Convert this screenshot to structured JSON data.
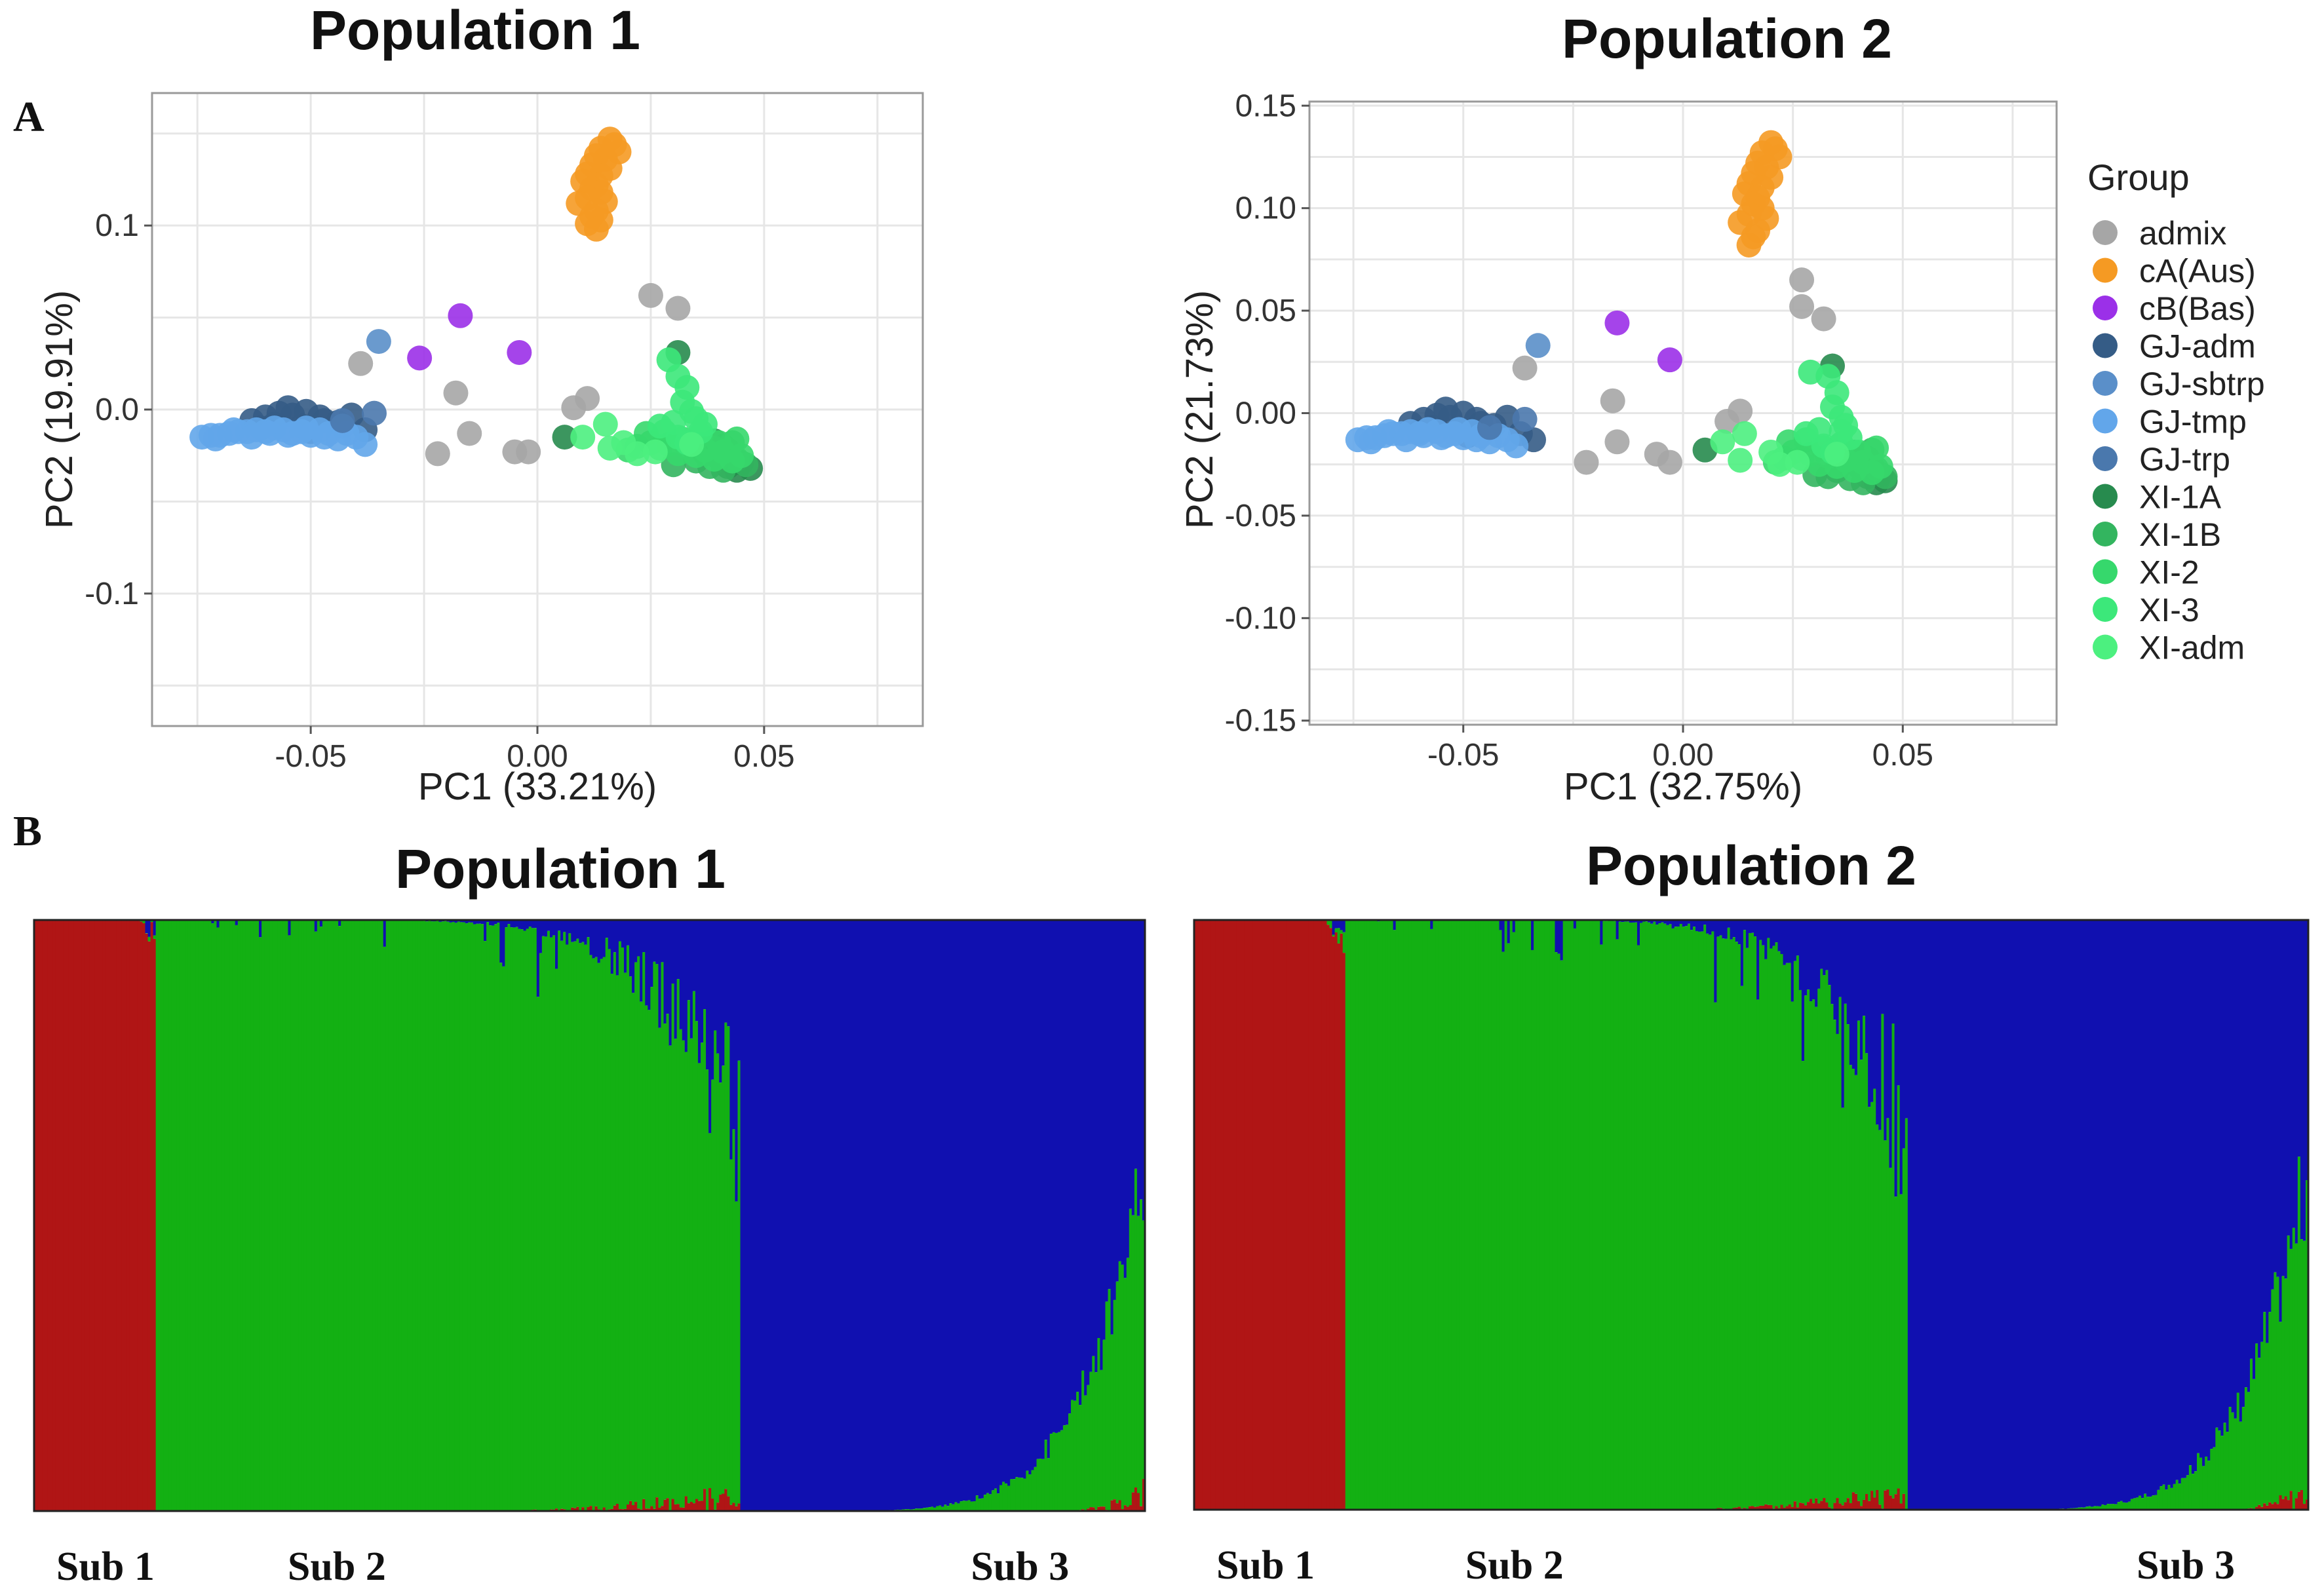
{
  "panel_a_label": "A",
  "panel_b_label": "B",
  "chart_data": [
    {
      "type": "scatter",
      "title": "Population 1",
      "xlabel": "PC1 (33.21%)",
      "ylabel": "PC2 (19.91%)",
      "xlim": [
        -0.085,
        0.085
      ],
      "ylim": [
        -0.172,
        0.172
      ],
      "xticks": [
        -0.05,
        0.0,
        0.05
      ],
      "xtick_labels": [
        "-0.05",
        "0.00",
        "0.05"
      ],
      "yticks": [
        -0.1,
        0.0,
        0.1
      ],
      "ytick_labels": [
        "-0.1",
        "0.0",
        "0.1"
      ],
      "series": [
        {
          "name": "admix",
          "x": [
            0.025,
            0.031,
            -0.039,
            -0.018,
            -0.015,
            -0.022,
            -0.005,
            -0.002,
            0.008,
            0.011
          ],
          "y": [
            0.062,
            0.055,
            0.025,
            0.009,
            -0.013,
            -0.024,
            -0.023,
            -0.023,
            0.001,
            0.006
          ]
        },
        {
          "name": "cA(Aus)",
          "x": [
            0.016,
            0.017,
            0.014,
            0.018,
            0.013,
            0.015,
            0.012,
            0.016,
            0.011,
            0.014,
            0.01,
            0.013,
            0.012,
            0.014,
            0.011,
            0.015,
            0.009,
            0.013,
            0.012,
            0.011,
            0.014,
            0.013
          ],
          "y": [
            0.147,
            0.144,
            0.142,
            0.14,
            0.138,
            0.136,
            0.133,
            0.131,
            0.128,
            0.127,
            0.124,
            0.122,
            0.12,
            0.118,
            0.115,
            0.113,
            0.112,
            0.108,
            0.105,
            0.101,
            0.103,
            0.098
          ]
        },
        {
          "name": "cB(Bas)",
          "x": [
            -0.017,
            -0.026,
            -0.004
          ],
          "y": [
            0.051,
            0.028,
            0.031
          ]
        },
        {
          "name": "GJ-adm",
          "x": [
            -0.063,
            -0.06,
            -0.057,
            -0.054,
            -0.051,
            -0.048,
            -0.058,
            -0.052,
            -0.047,
            -0.055,
            -0.061,
            -0.05,
            -0.044,
            -0.041,
            -0.038
          ],
          "y": [
            -0.006,
            -0.004,
            -0.002,
            -0.003,
            -0.001,
            -0.004,
            -0.008,
            -0.009,
            -0.006,
            0.001,
            -0.01,
            -0.012,
            -0.007,
            -0.003,
            -0.011
          ]
        },
        {
          "name": "GJ-sbtrp",
          "x": [
            -0.035
          ],
          "y": [
            0.037
          ]
        },
        {
          "name": "GJ-tmp",
          "x": [
            -0.074,
            -0.072,
            -0.07,
            -0.068,
            -0.066,
            -0.064,
            -0.062,
            -0.06,
            -0.058,
            -0.056,
            -0.054,
            -0.052,
            -0.05,
            -0.048,
            -0.046,
            -0.044,
            -0.042,
            -0.04,
            -0.038,
            -0.071,
            -0.067,
            -0.063,
            -0.059,
            -0.055,
            -0.051,
            -0.047,
            -0.043
          ],
          "y": [
            -0.015,
            -0.014,
            -0.014,
            -0.013,
            -0.012,
            -0.012,
            -0.011,
            -0.012,
            -0.01,
            -0.011,
            -0.013,
            -0.012,
            -0.014,
            -0.011,
            -0.013,
            -0.016,
            -0.013,
            -0.015,
            -0.019,
            -0.016,
            -0.011,
            -0.015,
            -0.013,
            -0.014,
            -0.01,
            -0.015,
            -0.009
          ]
        },
        {
          "name": "GJ-trp",
          "x": [
            -0.036,
            -0.043
          ],
          "y": [
            -0.002,
            -0.006
          ]
        },
        {
          "name": "XI-1A",
          "x": [
            0.031,
            0.006,
            0.039,
            0.041,
            0.043,
            0.045,
            0.047,
            0.044,
            0.042
          ],
          "y": [
            0.031,
            -0.015,
            -0.017,
            -0.02,
            -0.025,
            -0.029,
            -0.032,
            -0.033,
            -0.031
          ]
        },
        {
          "name": "XI-1B",
          "x": [
            0.03,
            0.035,
            0.037,
            0.04,
            0.042,
            0.044,
            0.046,
            0.038,
            0.036,
            0.041,
            0.043,
            0.039
          ],
          "y": [
            -0.03,
            -0.028,
            -0.024,
            -0.026,
            -0.022,
            -0.027,
            -0.03,
            -0.031,
            -0.019,
            -0.033,
            -0.018,
            -0.021
          ]
        },
        {
          "name": "XI-2",
          "x": [
            0.02,
            0.022,
            0.025,
            0.027,
            0.029,
            0.031,
            0.033,
            0.035,
            0.037,
            0.039,
            0.041,
            0.043,
            0.045,
            0.024,
            0.028,
            0.032,
            0.036,
            0.04,
            0.044
          ],
          "y": [
            -0.022,
            -0.02,
            -0.018,
            -0.021,
            -0.019,
            -0.024,
            -0.02,
            -0.025,
            -0.022,
            -0.027,
            -0.023,
            -0.028,
            -0.025,
            -0.013,
            -0.012,
            -0.016,
            -0.014,
            -0.018,
            -0.016
          ]
        },
        {
          "name": "XI-3",
          "x": [
            0.029,
            0.031,
            0.033,
            0.032,
            0.034,
            0.035,
            0.03,
            0.036,
            0.027,
            0.031,
            0.033,
            0.037
          ],
          "y": [
            0.027,
            0.018,
            0.012,
            0.004,
            -0.001,
            -0.005,
            -0.007,
            -0.012,
            -0.009,
            -0.015,
            -0.018,
            -0.008
          ]
        },
        {
          "name": "XI-adm",
          "x": [
            0.015,
            0.016,
            0.01,
            0.022,
            0.019,
            0.026,
            0.034
          ],
          "y": [
            -0.008,
            -0.021,
            -0.015,
            -0.024,
            -0.018,
            -0.023,
            -0.019
          ]
        }
      ]
    },
    {
      "type": "scatter",
      "title": "Population 2",
      "xlabel": "PC1 (32.75%)",
      "ylabel": "PC2 (21.73%)",
      "xlim": [
        -0.085,
        0.085
      ],
      "ylim": [
        -0.152,
        0.152
      ],
      "xticks": [
        -0.05,
        0.0,
        0.05
      ],
      "xtick_labels": [
        "-0.05",
        "0.00",
        "0.05"
      ],
      "yticks": [
        -0.15,
        -0.1,
        -0.05,
        0.0,
        0.05,
        0.1,
        0.15
      ],
      "ytick_labels": [
        "-0.15",
        "-0.10",
        "-0.05",
        "0.00",
        "0.05",
        "0.10",
        "0.15"
      ],
      "series": [
        {
          "name": "admix",
          "x": [
            0.027,
            0.027,
            0.032,
            -0.036,
            -0.016,
            -0.015,
            -0.022,
            -0.006,
            -0.003,
            0.01,
            0.013
          ],
          "y": [
            0.065,
            0.052,
            0.046,
            0.022,
            0.006,
            -0.014,
            -0.024,
            -0.02,
            -0.024,
            -0.004,
            0.001
          ]
        },
        {
          "name": "cA(Aus)",
          "x": [
            0.02,
            0.021,
            0.018,
            0.022,
            0.017,
            0.019,
            0.016,
            0.02,
            0.015,
            0.018,
            0.014,
            0.017,
            0.016,
            0.018,
            0.015,
            0.019,
            0.013,
            0.017,
            0.016,
            0.015
          ],
          "y": [
            0.132,
            0.129,
            0.127,
            0.125,
            0.122,
            0.12,
            0.117,
            0.115,
            0.112,
            0.11,
            0.107,
            0.105,
            0.102,
            0.1,
            0.097,
            0.095,
            0.093,
            0.089,
            0.086,
            0.082
          ]
        },
        {
          "name": "cB(Bas)",
          "x": [
            -0.015,
            -0.003
          ],
          "y": [
            0.044,
            0.026
          ]
        },
        {
          "name": "GJ-adm",
          "x": [
            -0.062,
            -0.059,
            -0.056,
            -0.053,
            -0.05,
            -0.047,
            -0.057,
            -0.051,
            -0.046,
            -0.054,
            -0.06,
            -0.049,
            -0.043,
            -0.04,
            -0.037,
            -0.034
          ],
          "y": [
            -0.005,
            -0.003,
            -0.001,
            -0.002,
            0.0,
            -0.003,
            -0.007,
            -0.008,
            -0.005,
            0.002,
            -0.009,
            -0.011,
            -0.006,
            -0.002,
            -0.01,
            -0.013
          ]
        },
        {
          "name": "GJ-sbtrp",
          "x": [
            -0.033
          ],
          "y": [
            0.033
          ]
        },
        {
          "name": "GJ-tmp",
          "x": [
            -0.074,
            -0.072,
            -0.07,
            -0.068,
            -0.066,
            -0.064,
            -0.062,
            -0.06,
            -0.058,
            -0.056,
            -0.054,
            -0.052,
            -0.05,
            -0.048,
            -0.046,
            -0.044,
            -0.042,
            -0.04,
            -0.038,
            -0.071,
            -0.067,
            -0.063,
            -0.059,
            -0.055,
            -0.051,
            -0.047
          ],
          "y": [
            -0.013,
            -0.012,
            -0.012,
            -0.011,
            -0.01,
            -0.01,
            -0.009,
            -0.01,
            -0.008,
            -0.009,
            -0.011,
            -0.01,
            -0.012,
            -0.009,
            -0.011,
            -0.014,
            -0.011,
            -0.013,
            -0.016,
            -0.014,
            -0.009,
            -0.013,
            -0.011,
            -0.012,
            -0.008,
            -0.013
          ]
        },
        {
          "name": "GJ-trp",
          "x": [
            -0.036,
            -0.044
          ],
          "y": [
            -0.003,
            -0.007
          ]
        },
        {
          "name": "XI-1A",
          "x": [
            0.034,
            0.005,
            0.039,
            0.041,
            0.043,
            0.045,
            0.046,
            0.044,
            0.042
          ],
          "y": [
            0.023,
            -0.018,
            -0.019,
            -0.022,
            -0.026,
            -0.03,
            -0.033,
            -0.034,
            -0.031
          ]
        },
        {
          "name": "XI-1B",
          "x": [
            0.03,
            0.035,
            0.037,
            0.04,
            0.042,
            0.044,
            0.046,
            0.038,
            0.036,
            0.041,
            0.043,
            0.039,
            0.033
          ],
          "y": [
            -0.03,
            -0.028,
            -0.024,
            -0.026,
            -0.022,
            -0.027,
            -0.031,
            -0.032,
            -0.019,
            -0.034,
            -0.018,
            -0.021,
            -0.031
          ]
        },
        {
          "name": "XI-2",
          "x": [
            0.021,
            0.023,
            0.025,
            0.027,
            0.029,
            0.031,
            0.033,
            0.035,
            0.037,
            0.039,
            0.041,
            0.043,
            0.045,
            0.024,
            0.028,
            0.032,
            0.036,
            0.04,
            0.044
          ],
          "y": [
            -0.024,
            -0.022,
            -0.019,
            -0.022,
            -0.02,
            -0.025,
            -0.021,
            -0.026,
            -0.023,
            -0.028,
            -0.024,
            -0.029,
            -0.026,
            -0.014,
            -0.013,
            -0.017,
            -0.015,
            -0.019,
            -0.017
          ]
        },
        {
          "name": "XI-3",
          "x": [
            0.029,
            0.033,
            0.035,
            0.034,
            0.036,
            0.037,
            0.031,
            0.038,
            0.028,
            0.032,
            0.034,
            0.036
          ],
          "y": [
            0.02,
            0.018,
            0.01,
            0.003,
            -0.002,
            -0.006,
            -0.008,
            -0.012,
            -0.01,
            -0.016,
            -0.019,
            -0.009
          ]
        },
        {
          "name": "XI-adm",
          "x": [
            0.014,
            0.013,
            0.009,
            0.022,
            0.02,
            0.026,
            0.035
          ],
          "y": [
            -0.01,
            -0.023,
            -0.014,
            -0.025,
            -0.019,
            -0.024,
            -0.02
          ]
        }
      ]
    },
    {
      "type": "bar",
      "stacked": true,
      "title": "Population 1",
      "series": [
        {
          "name": "Sub 1",
          "color": "#b01515"
        },
        {
          "name": "Sub 2",
          "color": "#13b013"
        },
        {
          "name": "Sub 3",
          "color": "#1010b0"
        }
      ],
      "segments": [
        {
          "start": 0.0,
          "end": 0.11,
          "dominant": "Sub 1",
          "label": "Sub 1"
        },
        {
          "start": 0.11,
          "end": 0.635,
          "dominant": "Sub 2",
          "label": "Sub 2"
        },
        {
          "start": 0.635,
          "end": 1.0,
          "dominant": "Sub 3",
          "label": "Sub 3"
        }
      ]
    },
    {
      "type": "bar",
      "stacked": true,
      "title": "Population 2",
      "series": [
        {
          "name": "Sub 1",
          "color": "#b01515"
        },
        {
          "name": "Sub 2",
          "color": "#13b013"
        },
        {
          "name": "Sub 3",
          "color": "#1010b0"
        }
      ],
      "segments": [
        {
          "start": 0.0,
          "end": 0.135,
          "dominant": "Sub 1",
          "label": "Sub 1"
        },
        {
          "start": 0.135,
          "end": 0.64,
          "dominant": "Sub 2",
          "label": "Sub 2"
        },
        {
          "start": 0.64,
          "end": 1.0,
          "dominant": "Sub 3",
          "label": "Sub 3"
        }
      ]
    }
  ],
  "legend": {
    "title": "Group",
    "items": [
      {
        "name": "admix",
        "color": "#a6a6a6"
      },
      {
        "name": "cA(Aus)",
        "color": "#f59a23"
      },
      {
        "name": "cB(Bas)",
        "color": "#9b30e8"
      },
      {
        "name": "GJ-adm",
        "color": "#355c86"
      },
      {
        "name": "GJ-sbtrp",
        "color": "#5a8fc9"
      },
      {
        "name": "GJ-tmp",
        "color": "#62a6ea"
      },
      {
        "name": "GJ-trp",
        "color": "#4a78ad"
      },
      {
        "name": "XI-1A",
        "color": "#278b4e"
      },
      {
        "name": "XI-1B",
        "color": "#33b55f"
      },
      {
        "name": "XI-2",
        "color": "#36d86c"
      },
      {
        "name": "XI-3",
        "color": "#3ce87a"
      },
      {
        "name": "XI-adm",
        "color": "#4cf07f"
      }
    ]
  }
}
